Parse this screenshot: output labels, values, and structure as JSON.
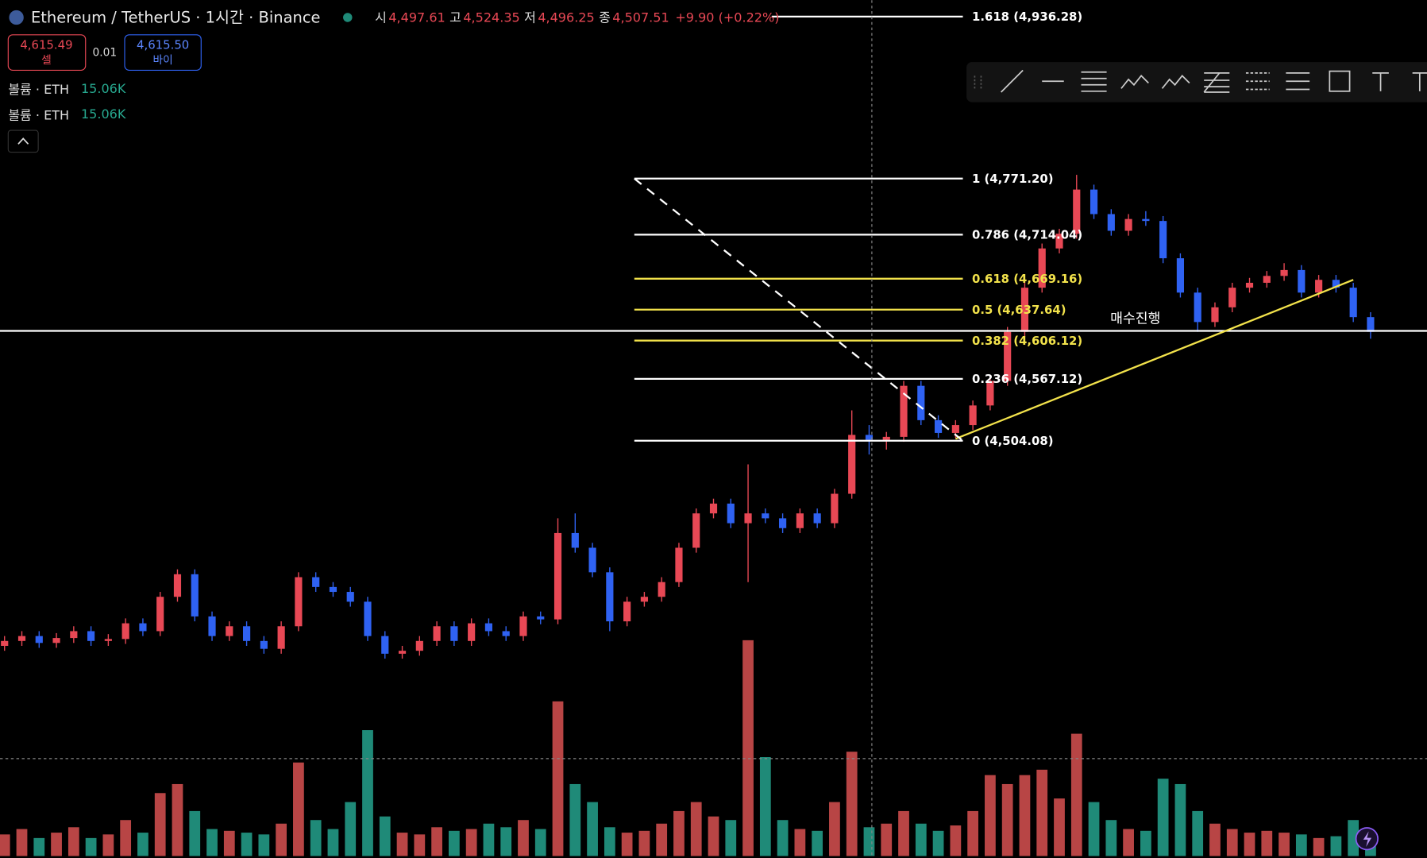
{
  "header": {
    "symbol": "Ethereum / TetherUS · 1시간 · Binance",
    "open_label": "시",
    "open": "4,497.61",
    "high_label": "고",
    "high": "4,524.35",
    "low_label": "저",
    "low": "4,496.25",
    "close_label": "종",
    "close": "4,507.51",
    "change": "+9.90 (+0.22%)"
  },
  "trade": {
    "sell_price": "4,615.49",
    "sell_label": "셀",
    "spread": "0.01",
    "buy_price": "4,615.50",
    "buy_label": "바이"
  },
  "volume_legend": [
    {
      "label": "볼륨 · ETH",
      "value": "15.06K"
    },
    {
      "label": "볼륨 · ETH",
      "value": "15.06K"
    }
  ],
  "annotation": "매수진행",
  "chart_data": {
    "type": "candlestick",
    "ylim": [
      4079,
      4953
    ],
    "vlim": [
      0,
      12
    ],
    "up_color": "#e84855",
    "down_color": "#2f62f2",
    "vol_up_color": "#b84545",
    "vol_down_color": "#1f8a78",
    "candles": [
      [
        4295,
        4305,
        4290,
        4300
      ],
      [
        4300,
        4310,
        4295,
        4305
      ],
      [
        4305,
        4310,
        4293,
        4298
      ],
      [
        4298,
        4308,
        4293,
        4303
      ],
      [
        4303,
        4315,
        4298,
        4310
      ],
      [
        4310,
        4315,
        4295,
        4300
      ],
      [
        4300,
        4307,
        4295,
        4302
      ],
      [
        4302,
        4323,
        4297,
        4318
      ],
      [
        4318,
        4323,
        4305,
        4310
      ],
      [
        4310,
        4350,
        4305,
        4345
      ],
      [
        4345,
        4373,
        4340,
        4368
      ],
      [
        4368,
        4373,
        4320,
        4325
      ],
      [
        4325,
        4330,
        4300,
        4305
      ],
      [
        4305,
        4320,
        4300,
        4315
      ],
      [
        4315,
        4320,
        4295,
        4300
      ],
      [
        4300,
        4305,
        4287,
        4292
      ],
      [
        4292,
        4320,
        4287,
        4315
      ],
      [
        4315,
        4370,
        4310,
        4365
      ],
      [
        4365,
        4370,
        4350,
        4355
      ],
      [
        4355,
        4360,
        4345,
        4350
      ],
      [
        4350,
        4355,
        4335,
        4340
      ],
      [
        4340,
        4345,
        4300,
        4305
      ],
      [
        4305,
        4310,
        4282,
        4287
      ],
      [
        4287,
        4295,
        4282,
        4290
      ],
      [
        4290,
        4305,
        4285,
        4300
      ],
      [
        4300,
        4320,
        4295,
        4315
      ],
      [
        4315,
        4320,
        4295,
        4300
      ],
      [
        4300,
        4323,
        4295,
        4318
      ],
      [
        4318,
        4323,
        4305,
        4310
      ],
      [
        4310,
        4315,
        4300,
        4305
      ],
      [
        4305,
        4330,
        4300,
        4325
      ],
      [
        4325,
        4330,
        4317,
        4322
      ],
      [
        4322,
        4425,
        4317,
        4410
      ],
      [
        4410,
        4430,
        4390,
        4395
      ],
      [
        4395,
        4400,
        4365,
        4370
      ],
      [
        4370,
        4375,
        4310,
        4320
      ],
      [
        4320,
        4345,
        4315,
        4340
      ],
      [
        4340,
        4350,
        4335,
        4345
      ],
      [
        4345,
        4365,
        4340,
        4360
      ],
      [
        4360,
        4400,
        4355,
        4395
      ],
      [
        4395,
        4435,
        4390,
        4430
      ],
      [
        4430,
        4445,
        4425,
        4440
      ],
      [
        4440,
        4445,
        4415,
        4420
      ],
      [
        4420,
        4480,
        4360,
        4430
      ],
      [
        4430,
        4435,
        4420,
        4425
      ],
      [
        4425,
        4430,
        4410,
        4415
      ],
      [
        4415,
        4435,
        4410,
        4430
      ],
      [
        4430,
        4435,
        4415,
        4420
      ],
      [
        4420,
        4455,
        4415,
        4450
      ],
      [
        4450,
        4535,
        4445,
        4510
      ],
      [
        4510,
        4520,
        4490,
        4505
      ],
      [
        4505,
        4513,
        4495,
        4508
      ],
      [
        4508,
        4565,
        4503,
        4560
      ],
      [
        4560,
        4565,
        4520,
        4525
      ],
      [
        4525,
        4530,
        4507,
        4512
      ],
      [
        4512,
        4525,
        4507,
        4520
      ],
      [
        4520,
        4545,
        4515,
        4540
      ],
      [
        4540,
        4570,
        4535,
        4565
      ],
      [
        4565,
        4620,
        4560,
        4615
      ],
      [
        4615,
        4665,
        4610,
        4660
      ],
      [
        4660,
        4705,
        4655,
        4700
      ],
      [
        4700,
        4720,
        4695,
        4715
      ],
      [
        4715,
        4775,
        4710,
        4760
      ],
      [
        4760,
        4765,
        4730,
        4735
      ],
      [
        4735,
        4740,
        4713,
        4718
      ],
      [
        4718,
        4735,
        4713,
        4730
      ],
      [
        4730,
        4738,
        4723,
        4728
      ],
      [
        4728,
        4733,
        4685,
        4690
      ],
      [
        4690,
        4695,
        4650,
        4655
      ],
      [
        4655,
        4660,
        4615,
        4625
      ],
      [
        4625,
        4645,
        4620,
        4640
      ],
      [
        4640,
        4665,
        4635,
        4660
      ],
      [
        4660,
        4670,
        4655,
        4665
      ],
      [
        4665,
        4677,
        4660,
        4672
      ],
      [
        4672,
        4685,
        4667,
        4678
      ],
      [
        4678,
        4683,
        4650,
        4655
      ],
      [
        4655,
        4673,
        4650,
        4668
      ],
      [
        4668,
        4673,
        4655,
        4660
      ],
      [
        4660,
        4665,
        4625,
        4630
      ],
      [
        4630,
        4635,
        4608,
        4615
      ]
    ],
    "volumes": [
      1.2,
      1.5,
      1.0,
      1.3,
      1.6,
      1.0,
      1.2,
      2.0,
      1.3,
      3.5,
      4.0,
      2.5,
      1.5,
      1.4,
      1.3,
      1.2,
      1.8,
      5.2,
      2.0,
      1.5,
      3.0,
      7.0,
      2.2,
      1.3,
      1.2,
      1.6,
      1.4,
      1.5,
      1.8,
      1.6,
      2.0,
      1.5,
      8.6,
      4.0,
      3.0,
      1.6,
      1.3,
      1.4,
      1.8,
      2.5,
      3.0,
      2.2,
      2.0,
      12.0,
      5.5,
      2.0,
      1.5,
      1.4,
      3.0,
      5.8,
      1.6,
      1.8,
      2.5,
      1.8,
      1.4,
      1.7,
      2.5,
      4.5,
      4.0,
      4.5,
      4.8,
      3.2,
      6.8,
      3.0,
      2.0,
      1.5,
      1.4,
      4.3,
      4.0,
      2.5,
      1.8,
      1.5,
      1.3,
      1.4,
      1.3,
      1.2,
      1.0,
      1.1,
      2.0,
      1.2
    ],
    "horizontal_line": 4616,
    "trend_line": [
      [
        55,
        4506
      ],
      [
        78,
        4668
      ]
    ],
    "fib_anchor": [
      [
        36,
        4771.2
      ],
      [
        55,
        4504.08
      ]
    ],
    "fib_levels": [
      {
        "price": 4936.28,
        "label": "1.618 (4,936.28)",
        "color": "#ffffff"
      },
      {
        "price": 4771.2,
        "label": "1 (4,771.20)",
        "color": "#ffffff"
      },
      {
        "price": 4714.04,
        "label": "0.786 (4,714.04)",
        "color": "#ffffff"
      },
      {
        "price": 4669.16,
        "label": "0.618 (4,669.16)",
        "color": "#f2e24b"
      },
      {
        "price": 4637.64,
        "label": "0.5 (4,637.64)",
        "color": "#f2e24b"
      },
      {
        "price": 4606.12,
        "label": "0.382 (4,606.12)",
        "color": "#f2e24b"
      },
      {
        "price": 4567.12,
        "label": "0.236 (4,567.12)",
        "color": "#ffffff"
      },
      {
        "price": 4504.08,
        "label": "0 (4,504.08)",
        "color": "#ffffff"
      }
    ]
  }
}
